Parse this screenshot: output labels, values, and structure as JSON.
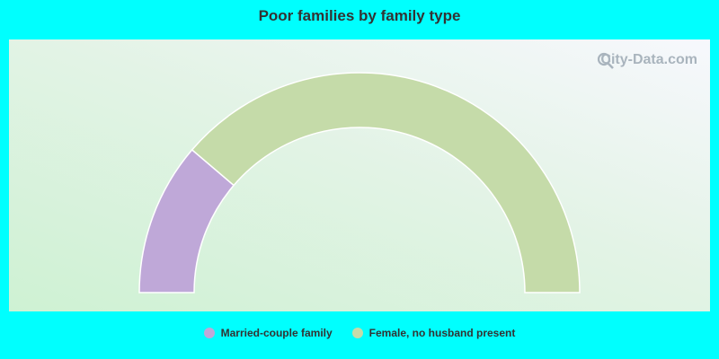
{
  "chart_data": {
    "type": "pie",
    "subtype": "half-donut",
    "title": "Poor families by family type",
    "series": [
      {
        "name": "Married-couple family",
        "value": 22.5,
        "color": "#bfa8d8"
      },
      {
        "name": "Female, no husband present",
        "value": 77.5,
        "color": "#c5dba9"
      }
    ],
    "legend_position": "bottom"
  },
  "watermark": {
    "text": "City-Data.com",
    "icon": "magnifier-icon"
  },
  "colors": {
    "background": "#00fffe",
    "title": "#333333"
  }
}
